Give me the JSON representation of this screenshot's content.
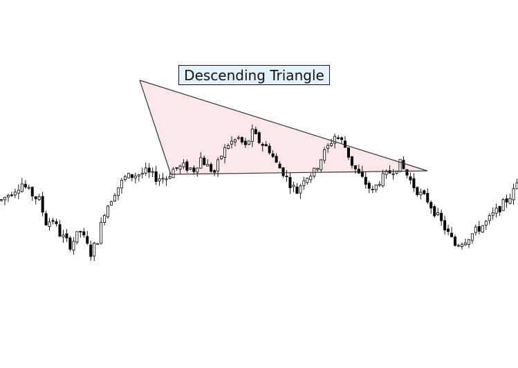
{
  "chart_data": {
    "type": "candlestick",
    "title": "",
    "annotation": "Descending Triangle",
    "xlabel": "",
    "ylabel": "",
    "grid": false,
    "legend": "none",
    "colors": {
      "up_body": "#ffffff",
      "down_body": "#000000",
      "wick": "#000000",
      "triangle_fill": "#fce8ea",
      "triangle_edge": "#333333",
      "label_bg": "#e6f2fb"
    },
    "x_range": [
      0,
      150
    ],
    "y_range": [
      0,
      100
    ],
    "path": [
      [
        0,
        52
      ],
      [
        3,
        55
      ],
      [
        6,
        58
      ],
      [
        8,
        55
      ],
      [
        11,
        52
      ],
      [
        13,
        44
      ],
      [
        15,
        45
      ],
      [
        17,
        40
      ],
      [
        20,
        36
      ],
      [
        23,
        41
      ],
      [
        26,
        33
      ],
      [
        28,
        38
      ],
      [
        30,
        48
      ],
      [
        33,
        55
      ],
      [
        36,
        60
      ],
      [
        39,
        61
      ],
      [
        42,
        62
      ],
      [
        45,
        60
      ],
      [
        48,
        60
      ],
      [
        50,
        63
      ],
      [
        53,
        64
      ],
      [
        56,
        63
      ],
      [
        58,
        67
      ],
      [
        60,
        64
      ],
      [
        62,
        62
      ],
      [
        64,
        68
      ],
      [
        66,
        72
      ],
      [
        69,
        74
      ],
      [
        71,
        71
      ],
      [
        73,
        76
      ],
      [
        75,
        73
      ],
      [
        78,
        70
      ],
      [
        80,
        65
      ],
      [
        82,
        62
      ],
      [
        84,
        58
      ],
      [
        86,
        55
      ],
      [
        88,
        60
      ],
      [
        91,
        62
      ],
      [
        93,
        67
      ],
      [
        95,
        71
      ],
      [
        97,
        75
      ],
      [
        99,
        73
      ],
      [
        100,
        71
      ],
      [
        102,
        65
      ],
      [
        104,
        61
      ],
      [
        106,
        58
      ],
      [
        108,
        55
      ],
      [
        110,
        59
      ],
      [
        112,
        61
      ],
      [
        114,
        63
      ],
      [
        116,
        65
      ],
      [
        118,
        61
      ],
      [
        120,
        57
      ],
      [
        122,
        54
      ],
      [
        124,
        52
      ],
      [
        126,
        48
      ],
      [
        128,
        44
      ],
      [
        130,
        40
      ],
      [
        132,
        36
      ],
      [
        135,
        38
      ],
      [
        138,
        41
      ],
      [
        141,
        44
      ],
      [
        144,
        48
      ],
      [
        147,
        52
      ],
      [
        149,
        55
      ],
      [
        150,
        58
      ]
    ],
    "triangle": {
      "apex": [
        0,
        84
      ],
      "top_end": [
        125,
        61
      ],
      "support": [
        [
          5,
          62
        ],
        [
          125,
          62
        ]
      ]
    },
    "candles": [],
    "series": []
  }
}
